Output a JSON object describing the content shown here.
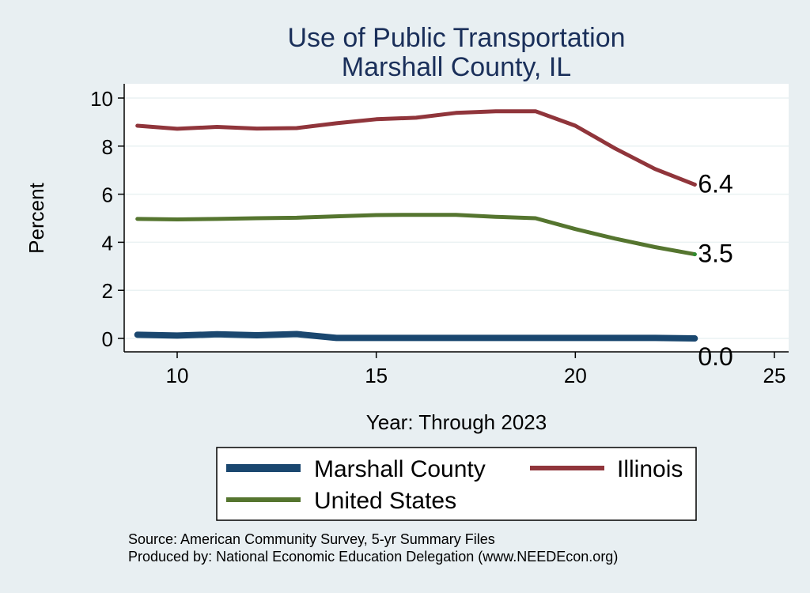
{
  "chart_data": {
    "type": "line",
    "title": "Use of Public Transportation",
    "subtitle": "Marshall County, IL",
    "xlabel": "Year: Through 2023",
    "ylabel": "Percent",
    "xlim": [
      9,
      25
    ],
    "ylim": [
      0,
      10.4
    ],
    "xticks": [
      10,
      15,
      20,
      25
    ],
    "yticks": [
      0,
      2,
      4,
      6,
      8,
      10
    ],
    "x": [
      9,
      10,
      11,
      12,
      13,
      14,
      15,
      16,
      17,
      18,
      19,
      20,
      21,
      22,
      23
    ],
    "series": [
      {
        "name": "Marshall County",
        "color": "#1a476f",
        "values": [
          0.15,
          0.12,
          0.17,
          0.13,
          0.18,
          0.02,
          0.02,
          0.02,
          0.02,
          0.02,
          0.02,
          0.02,
          0.02,
          0.02,
          0.0
        ],
        "end_label": "0.0"
      },
      {
        "name": "Illinois",
        "color": "#90353b",
        "values": [
          8.85,
          8.72,
          8.8,
          8.73,
          8.75,
          8.95,
          9.12,
          9.18,
          9.38,
          9.45,
          9.45,
          8.85,
          7.9,
          7.05,
          6.4
        ],
        "end_label": "6.4"
      },
      {
        "name": "United States",
        "color": "#55752f",
        "values": [
          4.97,
          4.95,
          4.97,
          5.0,
          5.02,
          5.08,
          5.13,
          5.14,
          5.14,
          5.06,
          5.0,
          4.55,
          4.15,
          3.8,
          3.5
        ],
        "end_label": "3.5"
      }
    ],
    "grid": true,
    "legend": {
      "placement": "bottom",
      "entries": [
        "Marshall County",
        "Illinois",
        "United States"
      ]
    },
    "notes": [
      "Source: American Community Survey, 5-yr Summary Files",
      "Produced by: National Economic Education Delegation (www.NEEDEcon.org)"
    ],
    "colors": {
      "background": "#e8eff2",
      "plot_background": "#ffffff",
      "title": "#1a2f5a",
      "grid": "#eaf2f3"
    }
  }
}
